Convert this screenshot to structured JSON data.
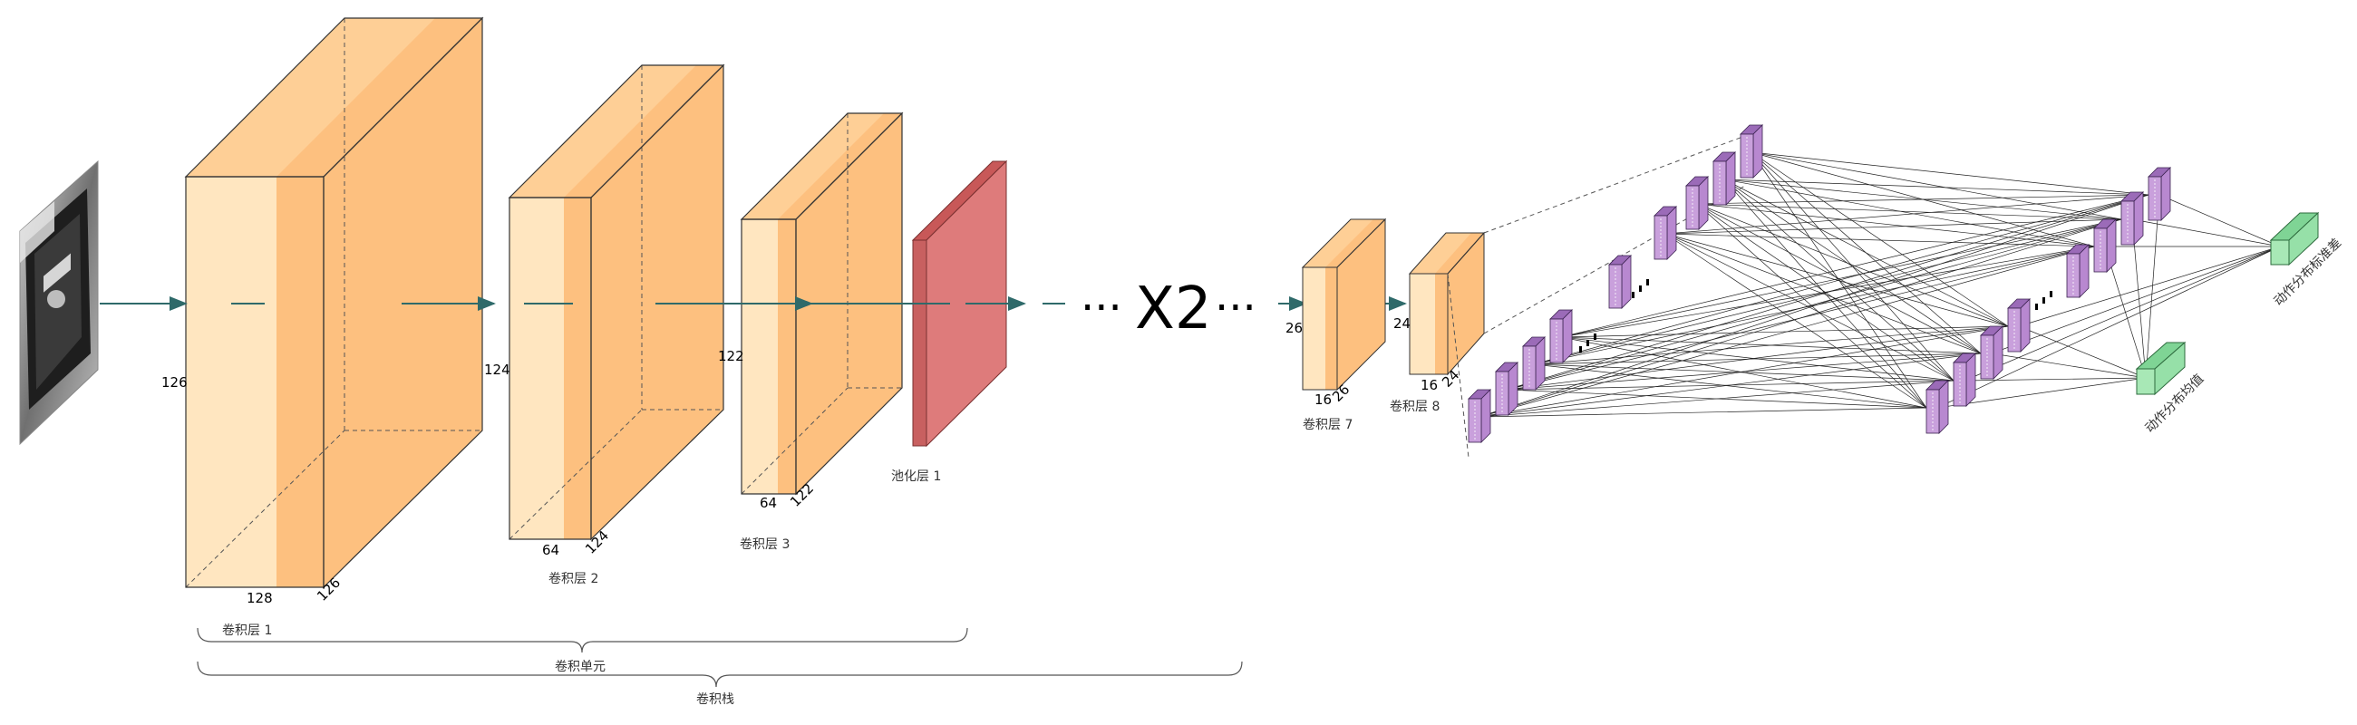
{
  "colors": {
    "conv_light": "#ffe6c0",
    "conv_dark": "#fdc07f",
    "conv_top": "#fecf96",
    "pool": "#de7b7b",
    "pool_dark": "#c85858",
    "fc_purple": "#c9a0dc",
    "fc_purple_dark": "#9b6bb8",
    "out_green": "#96e0a8",
    "arrow": "#2f6a6a"
  },
  "input": {
    "icon": "input-image"
  },
  "conv1": {
    "label": "卷积层 1",
    "height": "126",
    "width": "128",
    "depth": "126"
  },
  "conv2": {
    "label": "卷积层 2",
    "height": "124",
    "width": "64",
    "depth": "124"
  },
  "conv3": {
    "label": "卷积层 3",
    "height": "122",
    "width": "64",
    "depth": "122"
  },
  "pool1": {
    "label": "池化层 1"
  },
  "repeat": {
    "dots_left": "···",
    "text": "X2",
    "dots_right": "···"
  },
  "conv7": {
    "label": "卷积层 7",
    "height": "26",
    "width": "16",
    "depth": "26"
  },
  "conv8": {
    "label": "卷积层 8",
    "height": "24",
    "width": "16",
    "depth": "24"
  },
  "braces": {
    "layer": "卷积层 1",
    "unit": "卷积单元",
    "stack": "卷积栈"
  },
  "outputs": {
    "std": "动作分布标准差",
    "mean": "动作分布均值"
  }
}
